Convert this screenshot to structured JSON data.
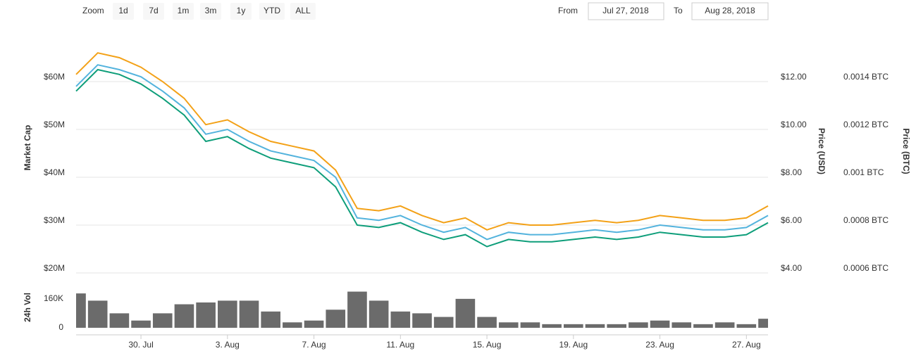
{
  "toolbar": {
    "zoom_label": "Zoom",
    "buttons": [
      "1d",
      "7d",
      "1m",
      "3m",
      "1y",
      "YTD",
      "ALL"
    ],
    "from_label": "From",
    "from_value": "Jul 27, 2018",
    "to_label": "To",
    "to_value": "Aug 28, 2018"
  },
  "chart_data": [
    {
      "type": "line",
      "x": [
        "2018-07-27",
        "2018-07-28",
        "2018-07-29",
        "2018-07-30",
        "2018-07-31",
        "2018-08-01",
        "2018-08-02",
        "2018-08-03",
        "2018-08-04",
        "2018-08-05",
        "2018-08-06",
        "2018-08-07",
        "2018-08-08",
        "2018-08-09",
        "2018-08-10",
        "2018-08-11",
        "2018-08-12",
        "2018-08-13",
        "2018-08-14",
        "2018-08-15",
        "2018-08-16",
        "2018-08-17",
        "2018-08-18",
        "2018-08-19",
        "2018-08-20",
        "2018-08-21",
        "2018-08-22",
        "2018-08-23",
        "2018-08-24",
        "2018-08-25",
        "2018-08-26",
        "2018-08-27",
        "2018-08-28"
      ],
      "xlim": [
        "2018-07-27",
        "2018-08-28"
      ],
      "xticks": [
        {
          "value": "2018-07-30",
          "label": "30. Jul"
        },
        {
          "value": "2018-08-03",
          "label": "3. Aug"
        },
        {
          "value": "2018-08-07",
          "label": "7. Aug"
        },
        {
          "value": "2018-08-11",
          "label": "11. Aug"
        },
        {
          "value": "2018-08-15",
          "label": "15. Aug"
        },
        {
          "value": "2018-08-19",
          "label": "19. Aug"
        },
        {
          "value": "2018-08-23",
          "label": "23. Aug"
        },
        {
          "value": "2018-08-27",
          "label": "27. Aug"
        }
      ],
      "ylabel": "Market Cap",
      "y2label": "Price (USD)",
      "y3label": "Price (BTC)",
      "ylim": [
        20000000,
        70000000
      ],
      "yticks": [
        {
          "value": 20000000,
          "label": "$20M"
        },
        {
          "value": 30000000,
          "label": "$30M"
        },
        {
          "value": 40000000,
          "label": "$40M"
        },
        {
          "value": 50000000,
          "label": "$50M"
        },
        {
          "value": 60000000,
          "label": "$60M"
        }
      ],
      "y2lim": [
        4,
        14
      ],
      "y2ticks": [
        {
          "value": 4,
          "label": "$4.00"
        },
        {
          "value": 6,
          "label": "$6.00"
        },
        {
          "value": 8,
          "label": "$8.00"
        },
        {
          "value": 10,
          "label": "$10.00"
        },
        {
          "value": 12,
          "label": "$12.00"
        }
      ],
      "y3lim": [
        0.0006,
        0.0016
      ],
      "y3ticks": [
        {
          "value": 0.0006,
          "label": "0.0006 BTC"
        },
        {
          "value": 0.0008,
          "label": "0.0008 BTC"
        },
        {
          "value": 0.001,
          "label": "0.001 BTC"
        },
        {
          "value": 0.0012,
          "label": "0.0012 BTC"
        },
        {
          "value": 0.0014,
          "label": "0.0014 BTC"
        }
      ],
      "grid": true,
      "series": [
        {
          "name": "Market Cap",
          "axis": "y",
          "color": "#53b3dd",
          "values": [
            59000000,
            63500000,
            62500000,
            61000000,
            58000000,
            54500000,
            49000000,
            50000000,
            47500000,
            45500000,
            44500000,
            43500000,
            40000000,
            31500000,
            31000000,
            32000000,
            30000000,
            28500000,
            29500000,
            27000000,
            28500000,
            28000000,
            28000000,
            28500000,
            29000000,
            28500000,
            29000000,
            30000000,
            29500000,
            29000000,
            29000000,
            29500000,
            32000000
          ]
        },
        {
          "name": "Price (USD)",
          "axis": "y2",
          "color": "#0e9e7a",
          "values": [
            11.6,
            12.5,
            12.3,
            11.9,
            11.3,
            10.6,
            9.5,
            9.7,
            9.2,
            8.8,
            8.6,
            8.4,
            7.6,
            6.0,
            5.9,
            6.1,
            5.7,
            5.4,
            5.6,
            5.1,
            5.4,
            5.3,
            5.3,
            5.4,
            5.5,
            5.4,
            5.5,
            5.7,
            5.6,
            5.5,
            5.5,
            5.6,
            6.1
          ]
        },
        {
          "name": "Price (BTC)",
          "axis": "y3",
          "color": "#f3a117",
          "values": [
            0.00143,
            0.00152,
            0.0015,
            0.00146,
            0.0014,
            0.00133,
            0.00122,
            0.00124,
            0.00119,
            0.00115,
            0.00113,
            0.00111,
            0.00103,
            0.00087,
            0.00086,
            0.00088,
            0.00084,
            0.00081,
            0.00083,
            0.00078,
            0.00081,
            0.0008,
            0.0008,
            0.00081,
            0.00082,
            0.00081,
            0.00082,
            0.00084,
            0.00083,
            0.00082,
            0.00082,
            0.00083,
            0.00088
          ]
        }
      ]
    },
    {
      "type": "bar",
      "ylabel": "24h Vol",
      "x": [
        "2018-07-27",
        "2018-07-28",
        "2018-07-29",
        "2018-07-30",
        "2018-07-31",
        "2018-08-01",
        "2018-08-02",
        "2018-08-03",
        "2018-08-04",
        "2018-08-05",
        "2018-08-06",
        "2018-08-07",
        "2018-08-08",
        "2018-08-09",
        "2018-08-10",
        "2018-08-11",
        "2018-08-12",
        "2018-08-13",
        "2018-08-14",
        "2018-08-15",
        "2018-08-16",
        "2018-08-17",
        "2018-08-18",
        "2018-08-19",
        "2018-08-20",
        "2018-08-21",
        "2018-08-22",
        "2018-08-23",
        "2018-08-24",
        "2018-08-25",
        "2018-08-26",
        "2018-08-27",
        "2018-08-28"
      ],
      "xlim": [
        "2018-07-27",
        "2018-08-28"
      ],
      "ylim": [
        0,
        280000
      ],
      "yticks": [
        0,
        {
          "value": 160000,
          "label": "160K"
        }
      ],
      "color": "#6b6b6b",
      "values": [
        190000,
        150000,
        80000,
        40000,
        80000,
        130000,
        140000,
        150000,
        150000,
        90000,
        30000,
        40000,
        100000,
        200000,
        150000,
        90000,
        80000,
        60000,
        160000,
        60000,
        30000,
        30000,
        20000,
        20000,
        20000,
        20000,
        30000,
        40000,
        30000,
        20000,
        30000,
        20000,
        50000
      ]
    }
  ]
}
